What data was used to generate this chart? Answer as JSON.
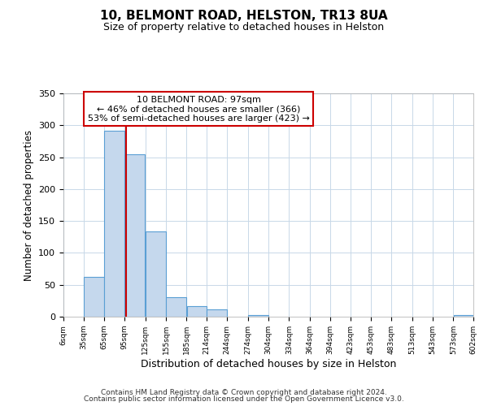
{
  "title": "10, BELMONT ROAD, HELSTON, TR13 8UA",
  "subtitle": "Size of property relative to detached houses in Helston",
  "xlabel": "Distribution of detached houses by size in Helston",
  "ylabel": "Number of detached properties",
  "bin_edges": [
    6,
    35,
    65,
    95,
    125,
    155,
    185,
    214,
    244,
    274,
    304,
    334,
    364,
    394,
    423,
    453,
    483,
    513,
    543,
    573,
    602
  ],
  "bin_counts": [
    0,
    62,
    291,
    254,
    134,
    30,
    17,
    11,
    0,
    3,
    0,
    0,
    0,
    0,
    0,
    0,
    0,
    0,
    0,
    3
  ],
  "bar_color": "#c5d8ed",
  "bar_edge_color": "#5a9fd4",
  "property_size": 97,
  "vline_color": "#cc0000",
  "annotation_title": "10 BELMONT ROAD: 97sqm",
  "annotation_line1": "← 46% of detached houses are smaller (366)",
  "annotation_line2": "53% of semi-detached houses are larger (423) →",
  "annotation_box_color": "#cc0000",
  "annotation_text_color": "#000000",
  "ylim": [
    0,
    350
  ],
  "yticks": [
    0,
    50,
    100,
    150,
    200,
    250,
    300,
    350
  ],
  "tick_labels": [
    "6sqm",
    "35sqm",
    "65sqm",
    "95sqm",
    "125sqm",
    "155sqm",
    "185sqm",
    "214sqm",
    "244sqm",
    "274sqm",
    "304sqm",
    "334sqm",
    "364sqm",
    "394sqm",
    "423sqm",
    "453sqm",
    "483sqm",
    "513sqm",
    "543sqm",
    "573sqm",
    "602sqm"
  ],
  "footer1": "Contains HM Land Registry data © Crown copyright and database right 2024.",
  "footer2": "Contains public sector information licensed under the Open Government Licence v3.0.",
  "background_color": "#ffffff",
  "grid_color": "#c8d8e8"
}
